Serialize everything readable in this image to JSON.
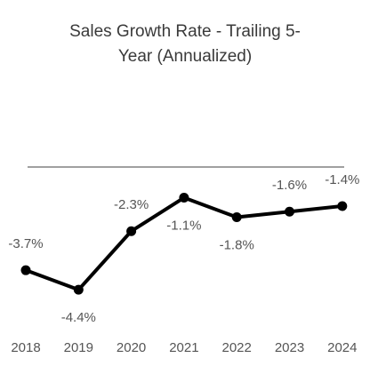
{
  "chart_data": {
    "type": "line",
    "title_lines": [
      "Sales Growth Rate - Trailing 5-",
      "Year (Annualized)"
    ],
    "categories": [
      "2018",
      "2019",
      "2020",
      "2021",
      "2022",
      "2023",
      "2024"
    ],
    "values": [
      -3.7,
      -4.4,
      -2.3,
      -1.1,
      -1.8,
      -1.6,
      -1.4
    ],
    "value_labels": [
      "-3.7%",
      "-4.4%",
      "-2.3%",
      "-1.1%",
      "-1.8%",
      "-1.6%",
      "-1.4%"
    ],
    "ylim": [
      -4.7,
      0.0
    ],
    "zero_line": true,
    "grid": false,
    "colors": {
      "line": "#000000",
      "zero_line": "#808080",
      "text": "#555555",
      "title": "#3a3a3a"
    }
  }
}
